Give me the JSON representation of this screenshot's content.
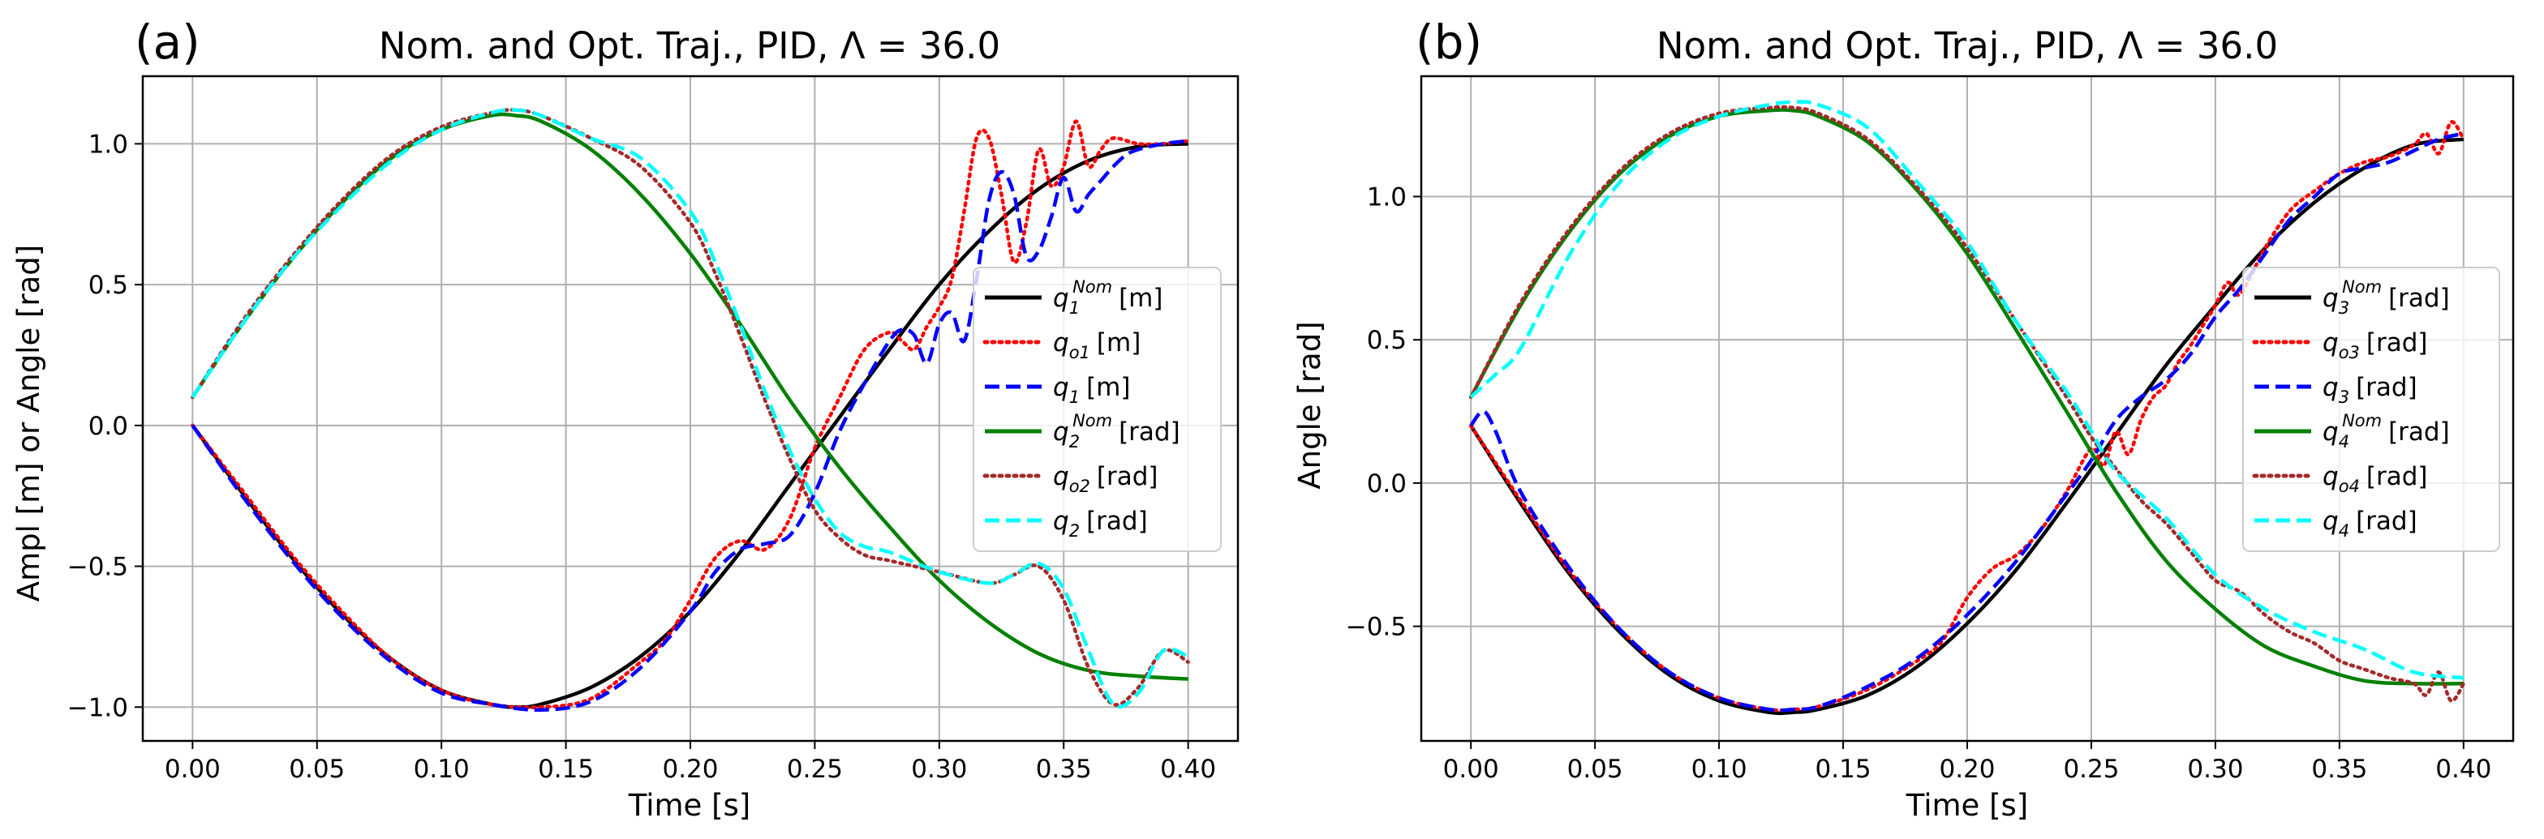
{
  "figure": {
    "panels": [
      {
        "id": "a",
        "tag": "(a)",
        "title": "Nom. and Opt. Traj., PID, Λ = 36.0",
        "xlabel": "Time  [s]",
        "ylabel": "Ampl [m] or Angle [rad]"
      },
      {
        "id": "b",
        "tag": "(b)",
        "title": "Nom. and Opt. Traj., PID, Λ = 36.0",
        "xlabel": "Time [s]",
        "ylabel": "Angle [rad]"
      }
    ]
  },
  "colors": {
    "nominal_a": "#000000",
    "nominal_b": "#008000",
    "optimal_a": "#ff0000",
    "optimal_b": "#a52a2a",
    "actual_a": "#0000ff",
    "actual_b": "#00ffff",
    "grid": "#b0b0b0"
  },
  "chart_data": [
    {
      "type": "line",
      "title": "Nom. and Opt. Traj., PID, Λ = 36.0",
      "xlabel": "Time  [s]",
      "ylabel": "Ampl [m] or Angle [rad]",
      "xlim": [
        -0.02,
        0.42
      ],
      "ylim": [
        -1.12,
        1.24
      ],
      "xticks": [
        0.0,
        0.05,
        0.1,
        0.15,
        0.2,
        0.25,
        0.3,
        0.35,
        0.4
      ],
      "xtick_labels": [
        "0.00",
        "0.05",
        "0.10",
        "0.15",
        "0.20",
        "0.25",
        "0.30",
        "0.35",
        "0.40"
      ],
      "yticks": [
        -1.0,
        -0.5,
        0.0,
        0.5,
        1.0
      ],
      "ytick_labels": [
        "−1.0",
        "−0.5",
        "0.0",
        "0.5",
        "1.0"
      ],
      "grid": true,
      "legend_position": "center-right",
      "series": [
        {
          "name": "q1 Nom",
          "sym": "q",
          "sub": "1",
          "sup": "Nom",
          "unit": "[m]",
          "style": "solid",
          "colorKey": "nominal_a",
          "x": [
            0,
            0.02,
            0.04,
            0.06,
            0.08,
            0.1,
            0.12,
            0.13,
            0.14,
            0.16,
            0.18,
            0.2,
            0.22,
            0.24,
            0.26,
            0.28,
            0.3,
            0.32,
            0.34,
            0.36,
            0.38,
            0.4
          ],
          "y": [
            0,
            -0.24,
            -0.47,
            -0.67,
            -0.83,
            -0.94,
            -0.99,
            -1.0,
            -0.99,
            -0.93,
            -0.82,
            -0.66,
            -0.45,
            -0.21,
            0.03,
            0.27,
            0.5,
            0.69,
            0.84,
            0.94,
            0.99,
            1.0
          ]
        },
        {
          "name": "qo1",
          "sym": "q",
          "sub": "o1",
          "sup": "",
          "unit": "[m]",
          "style": "dotted",
          "colorKey": "optimal_a",
          "x": [
            0,
            0.02,
            0.04,
            0.06,
            0.08,
            0.1,
            0.12,
            0.14,
            0.16,
            0.18,
            0.19,
            0.2,
            0.21,
            0.22,
            0.23,
            0.24,
            0.25,
            0.26,
            0.27,
            0.28,
            0.285,
            0.29,
            0.295,
            0.3,
            0.305,
            0.31,
            0.315,
            0.32,
            0.325,
            0.33,
            0.335,
            0.34,
            0.345,
            0.35,
            0.355,
            0.36,
            0.365,
            0.37,
            0.38,
            0.39,
            0.4
          ],
          "y": [
            0,
            -0.23,
            -0.46,
            -0.66,
            -0.83,
            -0.94,
            -0.99,
            -1.0,
            -0.97,
            -0.84,
            -0.76,
            -0.62,
            -0.47,
            -0.41,
            -0.44,
            -0.33,
            -0.08,
            0.1,
            0.27,
            0.33,
            0.3,
            0.27,
            0.35,
            0.42,
            0.52,
            0.76,
            1.02,
            1.02,
            0.82,
            0.58,
            0.72,
            0.98,
            0.85,
            0.92,
            1.08,
            0.92,
            0.98,
            1.02,
            1.0,
            1.0,
            1.01
          ]
        },
        {
          "name": "q1",
          "sym": "q",
          "sub": "1",
          "sup": "",
          "unit": "[m]",
          "style": "dashed",
          "colorKey": "actual_a",
          "x": [
            0,
            0.02,
            0.04,
            0.06,
            0.08,
            0.1,
            0.12,
            0.14,
            0.16,
            0.18,
            0.2,
            0.21,
            0.22,
            0.23,
            0.24,
            0.25,
            0.26,
            0.27,
            0.28,
            0.285,
            0.29,
            0.295,
            0.3,
            0.305,
            0.31,
            0.315,
            0.32,
            0.325,
            0.33,
            0.335,
            0.34,
            0.345,
            0.35,
            0.355,
            0.36,
            0.365,
            0.37,
            0.375,
            0.38,
            0.39,
            0.4
          ],
          "y": [
            0,
            -0.25,
            -0.48,
            -0.68,
            -0.84,
            -0.95,
            -0.99,
            -1.01,
            -0.98,
            -0.86,
            -0.66,
            -0.52,
            -0.44,
            -0.42,
            -0.39,
            -0.24,
            -0.02,
            0.15,
            0.3,
            0.34,
            0.32,
            0.22,
            0.36,
            0.4,
            0.3,
            0.52,
            0.8,
            0.9,
            0.82,
            0.6,
            0.62,
            0.74,
            0.88,
            0.76,
            0.82,
            0.87,
            0.92,
            0.96,
            0.98,
            1.0,
            1.01
          ]
        },
        {
          "name": "q2 Nom",
          "sym": "q",
          "sub": "2",
          "sup": "Nom",
          "unit": "[rad]",
          "style": "solid",
          "colorKey": "nominal_b",
          "x": [
            0,
            0.02,
            0.04,
            0.06,
            0.08,
            0.1,
            0.12,
            0.13,
            0.14,
            0.16,
            0.18,
            0.2,
            0.22,
            0.24,
            0.26,
            0.28,
            0.3,
            0.32,
            0.34,
            0.36,
            0.38,
            0.4
          ],
          "y": [
            0.1,
            0.36,
            0.59,
            0.79,
            0.95,
            1.05,
            1.1,
            1.1,
            1.08,
            0.98,
            0.82,
            0.61,
            0.36,
            0.09,
            -0.15,
            -0.36,
            -0.55,
            -0.7,
            -0.81,
            -0.87,
            -0.89,
            -0.9
          ]
        },
        {
          "name": "qo2",
          "sym": "q",
          "sub": "o2",
          "sup": "",
          "unit": "[rad]",
          "style": "dotted",
          "colorKey": "optimal_b",
          "x": [
            0,
            0.02,
            0.04,
            0.06,
            0.08,
            0.1,
            0.12,
            0.13,
            0.14,
            0.16,
            0.18,
            0.2,
            0.21,
            0.22,
            0.23,
            0.24,
            0.25,
            0.26,
            0.27,
            0.28,
            0.3,
            0.32,
            0.33,
            0.34,
            0.35,
            0.36,
            0.37,
            0.38,
            0.39,
            0.4
          ],
          "y": [
            0.1,
            0.37,
            0.6,
            0.8,
            0.96,
            1.06,
            1.11,
            1.12,
            1.1,
            1.02,
            0.92,
            0.72,
            0.54,
            0.32,
            0.09,
            -0.12,
            -0.3,
            -0.4,
            -0.46,
            -0.48,
            -0.52,
            -0.56,
            -0.53,
            -0.5,
            -0.62,
            -0.86,
            -0.99,
            -0.93,
            -0.8,
            -0.84
          ]
        },
        {
          "name": "q2",
          "sym": "q",
          "sub": "2",
          "sup": "",
          "unit": "[rad]",
          "style": "dashed",
          "colorKey": "actual_b",
          "x": [
            0,
            0.02,
            0.04,
            0.06,
            0.08,
            0.1,
            0.12,
            0.13,
            0.14,
            0.16,
            0.18,
            0.2,
            0.21,
            0.22,
            0.23,
            0.24,
            0.25,
            0.26,
            0.27,
            0.28,
            0.3,
            0.32,
            0.33,
            0.34,
            0.35,
            0.36,
            0.37,
            0.38,
            0.39,
            0.4
          ],
          "y": [
            0.1,
            0.36,
            0.59,
            0.78,
            0.94,
            1.05,
            1.11,
            1.12,
            1.1,
            1.02,
            0.95,
            0.76,
            0.58,
            0.36,
            0.12,
            -0.09,
            -0.26,
            -0.38,
            -0.43,
            -0.45,
            -0.52,
            -0.56,
            -0.53,
            -0.49,
            -0.58,
            -0.8,
            -0.99,
            -0.95,
            -0.8,
            -0.82
          ]
        }
      ]
    },
    {
      "type": "line",
      "title": "Nom. and Opt. Traj., PID, Λ = 36.0",
      "xlabel": "Time [s]",
      "ylabel": "Angle [rad]",
      "xlim": [
        -0.02,
        0.42
      ],
      "ylim": [
        -0.9,
        1.42
      ],
      "xticks": [
        0.0,
        0.05,
        0.1,
        0.15,
        0.2,
        0.25,
        0.3,
        0.35,
        0.4
      ],
      "xtick_labels": [
        "0.00",
        "0.05",
        "0.10",
        "0.15",
        "0.20",
        "0.25",
        "0.30",
        "0.35",
        "0.40"
      ],
      "yticks": [
        -0.5,
        0.0,
        0.5,
        1.0
      ],
      "ytick_labels": [
        "−0.5",
        "0.0",
        "0.5",
        "1.0"
      ],
      "grid": true,
      "legend_position": "center-right",
      "series": [
        {
          "name": "q3 Nom",
          "sym": "q",
          "sub": "3",
          "sup": "Nom",
          "unit": "[rad]",
          "style": "solid",
          "colorKey": "nominal_a",
          "x": [
            0,
            0.02,
            0.04,
            0.06,
            0.08,
            0.1,
            0.12,
            0.13,
            0.14,
            0.16,
            0.18,
            0.2,
            0.22,
            0.24,
            0.26,
            0.28,
            0.3,
            0.32,
            0.34,
            0.36,
            0.38,
            0.4
          ],
          "y": [
            0.2,
            -0.07,
            -0.32,
            -0.52,
            -0.67,
            -0.76,
            -0.8,
            -0.8,
            -0.79,
            -0.74,
            -0.64,
            -0.49,
            -0.3,
            -0.07,
            0.17,
            0.41,
            0.62,
            0.82,
            0.98,
            1.1,
            1.18,
            1.2
          ]
        },
        {
          "name": "qo3",
          "sym": "q",
          "sub": "o3",
          "sup": "",
          "unit": "[rad]",
          "style": "dotted",
          "colorKey": "optimal_a",
          "x": [
            0,
            0.02,
            0.04,
            0.06,
            0.08,
            0.1,
            0.12,
            0.13,
            0.14,
            0.16,
            0.18,
            0.19,
            0.2,
            0.21,
            0.22,
            0.23,
            0.24,
            0.25,
            0.255,
            0.26,
            0.265,
            0.27,
            0.275,
            0.28,
            0.285,
            0.29,
            0.295,
            0.3,
            0.305,
            0.31,
            0.32,
            0.33,
            0.34,
            0.35,
            0.36,
            0.37,
            0.38,
            0.385,
            0.39,
            0.395,
            0.4
          ],
          "y": [
            0.2,
            -0.06,
            -0.31,
            -0.51,
            -0.66,
            -0.75,
            -0.79,
            -0.79,
            -0.78,
            -0.72,
            -0.62,
            -0.55,
            -0.4,
            -0.3,
            -0.25,
            -0.16,
            -0.03,
            0.12,
            0.06,
            0.18,
            0.1,
            0.22,
            0.3,
            0.34,
            0.42,
            0.48,
            0.55,
            0.62,
            0.7,
            0.66,
            0.82,
            0.95,
            1.02,
            1.08,
            1.12,
            1.14,
            1.18,
            1.22,
            1.15,
            1.26,
            1.2
          ]
        },
        {
          "name": "q3",
          "sym": "q",
          "sub": "3",
          "sup": "",
          "unit": "[rad]",
          "style": "dashed",
          "colorKey": "actual_a",
          "x": [
            0,
            0.005,
            0.01,
            0.02,
            0.04,
            0.06,
            0.08,
            0.1,
            0.12,
            0.13,
            0.14,
            0.16,
            0.18,
            0.2,
            0.22,
            0.24,
            0.25,
            0.26,
            0.27,
            0.28,
            0.29,
            0.3,
            0.31,
            0.32,
            0.33,
            0.34,
            0.35,
            0.36,
            0.37,
            0.38,
            0.39,
            0.4
          ],
          "y": [
            0.2,
            0.25,
            0.18,
            -0.03,
            -0.3,
            -0.51,
            -0.66,
            -0.75,
            -0.79,
            -0.79,
            -0.78,
            -0.71,
            -0.61,
            -0.46,
            -0.27,
            -0.04,
            0.08,
            0.22,
            0.3,
            0.36,
            0.45,
            0.58,
            0.68,
            0.8,
            0.92,
            1.0,
            1.08,
            1.1,
            1.12,
            1.16,
            1.2,
            1.22
          ]
        },
        {
          "name": "q4 Nom",
          "sym": "q",
          "sub": "4",
          "sup": "Nom",
          "unit": "[rad]",
          "style": "solid",
          "colorKey": "nominal_b",
          "x": [
            0,
            0.02,
            0.04,
            0.06,
            0.08,
            0.1,
            0.12,
            0.13,
            0.14,
            0.16,
            0.18,
            0.2,
            0.22,
            0.24,
            0.26,
            0.28,
            0.3,
            0.32,
            0.34,
            0.36,
            0.38,
            0.4
          ],
          "y": [
            0.3,
            0.62,
            0.88,
            1.08,
            1.21,
            1.28,
            1.3,
            1.3,
            1.28,
            1.19,
            1.02,
            0.8,
            0.53,
            0.25,
            -0.03,
            -0.27,
            -0.44,
            -0.57,
            -0.64,
            -0.69,
            -0.7,
            -0.7
          ]
        },
        {
          "name": "qo4",
          "sym": "q",
          "sub": "o4",
          "sup": "",
          "unit": "[rad]",
          "style": "dotted",
          "colorKey": "optimal_b",
          "x": [
            0,
            0.02,
            0.04,
            0.06,
            0.08,
            0.1,
            0.12,
            0.13,
            0.14,
            0.16,
            0.18,
            0.2,
            0.22,
            0.24,
            0.25,
            0.26,
            0.27,
            0.28,
            0.29,
            0.3,
            0.31,
            0.32,
            0.33,
            0.34,
            0.35,
            0.36,
            0.37,
            0.38,
            0.385,
            0.39,
            0.395,
            0.4
          ],
          "y": [
            0.3,
            0.63,
            0.89,
            1.09,
            1.22,
            1.29,
            1.31,
            1.31,
            1.29,
            1.2,
            1.03,
            0.82,
            0.56,
            0.3,
            0.16,
            0.05,
            -0.06,
            -0.14,
            -0.24,
            -0.34,
            -0.38,
            -0.46,
            -0.52,
            -0.56,
            -0.62,
            -0.65,
            -0.68,
            -0.7,
            -0.74,
            -0.66,
            -0.76,
            -0.7
          ]
        },
        {
          "name": "q4",
          "sym": "q",
          "sub": "4",
          "sup": "",
          "unit": "[rad]",
          "style": "dashed",
          "colorKey": "actual_b",
          "x": [
            0,
            0.01,
            0.02,
            0.04,
            0.06,
            0.08,
            0.1,
            0.12,
            0.13,
            0.14,
            0.16,
            0.18,
            0.2,
            0.22,
            0.24,
            0.25,
            0.26,
            0.28,
            0.3,
            0.32,
            0.34,
            0.36,
            0.38,
            0.4
          ],
          "y": [
            0.3,
            0.38,
            0.47,
            0.8,
            1.05,
            1.2,
            1.28,
            1.32,
            1.33,
            1.32,
            1.24,
            1.05,
            0.84,
            0.56,
            0.32,
            0.18,
            0.04,
            -0.12,
            -0.32,
            -0.44,
            -0.52,
            -0.58,
            -0.66,
            -0.68
          ]
        }
      ]
    }
  ]
}
